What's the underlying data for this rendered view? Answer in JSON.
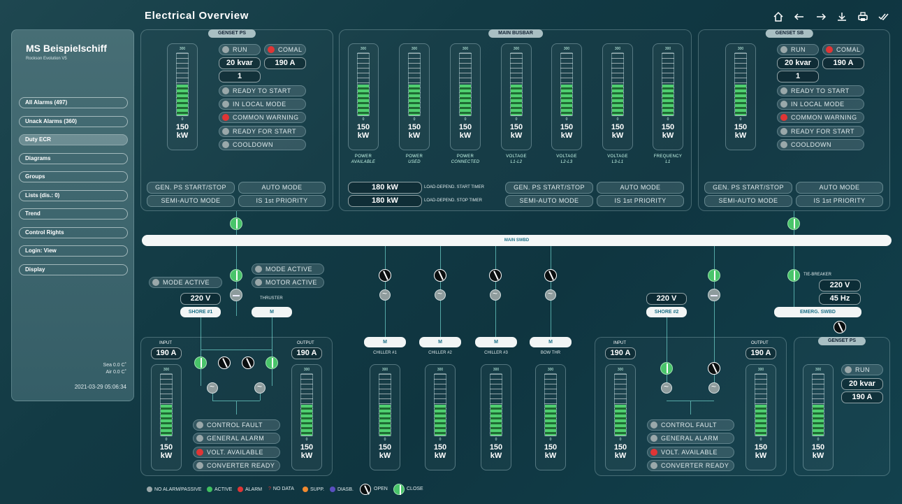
{
  "header": {
    "title": "Electrical Overview"
  },
  "toolbar": {
    "home_icon": "home-icon",
    "back_icon": "arrow-left-icon",
    "forward_icon": "arrow-right-icon",
    "download_icon": "download-icon",
    "print_icon": "print-icon",
    "ack_icon": "double-check-icon"
  },
  "sidebar": {
    "ship_name": "MS Beispielschiff",
    "version": "Rockson Evolution V5",
    "items": [
      {
        "label": "All Alarms (497)"
      },
      {
        "label": "Unack Alarms (360)"
      },
      {
        "label": "Duty ECR"
      },
      {
        "label": "Diagrams"
      },
      {
        "label": "Groups"
      },
      {
        "label": "Lists (dis.: 0)"
      },
      {
        "label": "Trend"
      },
      {
        "label": "Control Rights"
      },
      {
        "label": "Login: View"
      },
      {
        "label": "Display"
      }
    ],
    "selected": "Duty ECR",
    "sea_temp": "Sea 0.0 C˚",
    "air_temp": "Air 0.0 C˚",
    "datetime": "2021-03-29 05:06:34"
  },
  "genset_ps": {
    "title": "GENSET PS",
    "gauge": {
      "max": "300",
      "min": "0",
      "value": "150",
      "unit": "kW",
      "level": 0.5
    },
    "run": "RUN",
    "comal": "COMAL",
    "kvar": "20 kvar",
    "amps": "190 A",
    "number": "1",
    "status": [
      "READY TO START",
      "IN LOCAL MODE",
      "COMMON WARNING",
      "READY FOR START",
      "COOLDOWN"
    ],
    "buttons": [
      "GEN. PS START/STOP",
      "AUTO MODE",
      "SEMI-AUTO MODE",
      "IS 1st PRIORITY"
    ]
  },
  "genset_sb": {
    "title": "GENSET SB",
    "gauge": {
      "max": "300",
      "min": "0",
      "value": "150",
      "unit": "kW",
      "level": 0.5
    },
    "run": "RUN",
    "comal": "COMAL",
    "kvar": "20 kvar",
    "amps": "190 A",
    "number": "1",
    "status": [
      "READY TO START",
      "IN LOCAL MODE",
      "COMMON WARNING",
      "READY FOR START",
      "COOLDOWN"
    ],
    "buttons": [
      "GEN. PS START/STOP",
      "AUTO MODE",
      "SEMI-AUTO MODE",
      "IS 1st PRIORITY"
    ]
  },
  "main_busbar": {
    "title": "MAIN BUSBAR",
    "gauges": [
      {
        "max": "300",
        "min": "0",
        "value": "150",
        "unit": "kW",
        "label1": "POWER",
        "label2": "AVAILABLE",
        "level": 0.5
      },
      {
        "max": "300",
        "min": "0",
        "value": "150",
        "unit": "kW",
        "label1": "POWER",
        "label2": "USED",
        "level": 0.5
      },
      {
        "max": "300",
        "min": "0",
        "value": "150",
        "unit": "kW",
        "label1": "POWER",
        "label2": "CONNECTED",
        "level": 0.5
      },
      {
        "max": "300",
        "min": "0",
        "value": "150",
        "unit": "kW",
        "label1": "VOLTAGE",
        "label2": "L1-L2",
        "level": 0.5
      },
      {
        "max": "300",
        "min": "0",
        "value": "150",
        "unit": "kW",
        "label1": "VOLTAGE",
        "label2": "L2-L3",
        "level": 0.5
      },
      {
        "max": "300",
        "min": "0",
        "value": "150",
        "unit": "kW",
        "label1": "VOLTAGE",
        "label2": "L3-L1",
        "level": 0.5
      },
      {
        "max": "300",
        "min": "0",
        "value": "150",
        "unit": "kW",
        "label1": "FREQUENCY",
        "label2": "L1",
        "level": 0.5
      }
    ],
    "start_timer_value": "180 kW",
    "start_timer_label": "LOAD-DEPEND. START TIMER",
    "stop_timer_value": "180 kW",
    "stop_timer_label": "LOAD-DEPEND. STOP TIMER",
    "buttons": [
      "GEN. PS START/STOP",
      "AUTO MODE",
      "SEMI-AUTO MODE",
      "IS 1st PRIORITY"
    ]
  },
  "main_swbd": {
    "label": "MAIN SWBD"
  },
  "shore1": {
    "tag": "SHORE #1",
    "voltage": "220 V",
    "mode_active": "MODE ACTIVE"
  },
  "thruster": {
    "label": "THRUSTER",
    "tag": "M",
    "mode_active": "MODE ACTIVE",
    "motor_active": "MOTOR ACTIVE"
  },
  "converter_left": {
    "input_label": "INPUT",
    "input_value": "190 A",
    "output_label": "OUTPUT",
    "output_value": "190 A",
    "gauge_in": {
      "max": "300",
      "min": "0",
      "value": "150",
      "unit": "kW",
      "level": 0.5
    },
    "gauge_out": {
      "max": "300",
      "min": "0",
      "value": "150",
      "unit": "kW",
      "level": 0.5
    },
    "status": [
      "CONTROL FAULT",
      "GENERAL ALARM",
      "VOLT. AVAILABLE",
      "CONVERTER READY"
    ]
  },
  "consumers": [
    {
      "tag": "M",
      "label": "CHILLER #1",
      "gauge": {
        "max": "300",
        "min": "0",
        "value": "150",
        "unit": "kW",
        "level": 0.5
      }
    },
    {
      "tag": "M",
      "label": "CHILLER #2",
      "gauge": {
        "max": "300",
        "min": "0",
        "value": "150",
        "unit": "kW",
        "level": 0.5
      }
    },
    {
      "tag": "M",
      "label": "CHILLER #3",
      "gauge": {
        "max": "300",
        "min": "0",
        "value": "150",
        "unit": "kW",
        "level": 0.5
      }
    },
    {
      "tag": "M",
      "label": "BOW THR",
      "gauge": {
        "max": "300",
        "min": "0",
        "value": "150",
        "unit": "kW",
        "level": 0.5
      }
    }
  ],
  "shore2": {
    "tag": "SHORE #2",
    "voltage": "220 V"
  },
  "converter_right": {
    "input_label": "INPUT",
    "input_value": "190 A",
    "output_label": "OUTPUT",
    "output_value": "190 A",
    "gauge_in": {
      "max": "300",
      "min": "0",
      "value": "150",
      "unit": "kW",
      "level": 0.5
    },
    "gauge_out": {
      "max": "300",
      "min": "0",
      "value": "150",
      "unit": "kW",
      "level": 0.5
    },
    "status": [
      "CONTROL FAULT",
      "GENERAL ALARM",
      "VOLT. AVAILABLE",
      "CONVERTER READY"
    ]
  },
  "emergency": {
    "tie_breaker": "TIE-BREAKER",
    "voltage": "220 V",
    "frequency": "45 Hz",
    "tag": "EMERG. SWBD",
    "genset_title": "GENSET PS",
    "run": "RUN",
    "kvar": "20 kvar",
    "amps": "190 A",
    "gauge": {
      "max": "300",
      "min": "0",
      "value": "150",
      "unit": "kW",
      "level": 0.5
    }
  },
  "legend": [
    {
      "label": "NO ALARM/PASSIVE",
      "color": "#9aa8aa"
    },
    {
      "label": "ACTIVE",
      "color": "#3fbf60"
    },
    {
      "label": "ALARM",
      "color": "#e03535"
    },
    {
      "label": "NO DATA",
      "symbol": "?",
      "color": "#e03535"
    },
    {
      "label": "SUPP.",
      "color": "#f08a30"
    },
    {
      "label": "DIASB.",
      "color": "#5a4fc0"
    },
    {
      "label": "OPEN"
    },
    {
      "label": "CLOSE"
    }
  ],
  "colors": {
    "active": "#3fbf60",
    "alarm": "#e03535",
    "passive": "#9aa8aa",
    "line": "#53a8a6"
  }
}
